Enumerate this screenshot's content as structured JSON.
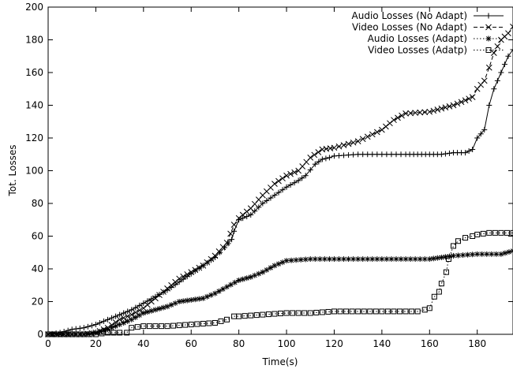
{
  "chart_data": {
    "type": "line",
    "xlabel": "Time(s)",
    "ylabel": "Tot. Losses",
    "xlim": [
      0,
      195
    ],
    "ylim": [
      0,
      200
    ],
    "xticks": [
      0,
      20,
      40,
      60,
      80,
      100,
      120,
      140,
      160,
      180
    ],
    "yticks": [
      0,
      20,
      40,
      60,
      80,
      100,
      120,
      140,
      160,
      180,
      200
    ],
    "grid": false,
    "legend_position": "top-right",
    "series": [
      {
        "name": "Audio Losses (No Adapt)",
        "line_style": "solid",
        "marker": "plus",
        "x": [
          0,
          5,
          10,
          15,
          20,
          25,
          30,
          35,
          40,
          45,
          50,
          55,
          60,
          65,
          70,
          74,
          77,
          78,
          80,
          85,
          90,
          95,
          100,
          105,
          108,
          112,
          115,
          118,
          120,
          130,
          140,
          150,
          155,
          160,
          165,
          170,
          175,
          178,
          180,
          183,
          185,
          187,
          190,
          193,
          195
        ],
        "y": [
          0,
          1,
          3,
          4,
          6,
          9,
          12,
          15,
          19,
          23,
          27,
          32,
          37,
          42,
          47,
          53,
          58,
          63,
          70,
          73,
          80,
          85,
          90,
          94,
          97,
          104,
          107,
          108,
          109,
          110,
          110,
          110,
          110,
          110,
          110,
          111,
          111,
          113,
          120,
          125,
          140,
          150,
          160,
          170,
          174
        ]
      },
      {
        "name": "Video Losses (No Adapt)",
        "line_style": "dashed",
        "marker": "x",
        "x": [
          0,
          5,
          10,
          15,
          20,
          25,
          30,
          35,
          40,
          45,
          50,
          55,
          60,
          65,
          70,
          75,
          78,
          80,
          85,
          90,
          95,
          100,
          105,
          110,
          115,
          120,
          130,
          140,
          145,
          150,
          160,
          165,
          170,
          175,
          178,
          180,
          183,
          185,
          187,
          190,
          193,
          195
        ],
        "y": [
          0,
          0,
          0,
          0,
          1,
          4,
          9,
          12,
          16,
          22,
          28,
          34,
          38,
          42,
          48,
          56,
          67,
          71,
          77,
          85,
          92,
          97,
          100,
          108,
          113,
          114,
          118,
          125,
          131,
          135,
          136,
          138,
          140,
          143,
          145,
          150,
          155,
          163,
          172,
          180,
          184,
          188
        ]
      },
      {
        "name": "Audio Losses (Adapt)",
        "line_style": "dotted",
        "marker": "asterisk",
        "x": [
          0,
          10,
          15,
          20,
          25,
          30,
          35,
          40,
          45,
          50,
          55,
          60,
          65,
          70,
          75,
          80,
          85,
          90,
          95,
          100,
          110,
          120,
          130,
          140,
          150,
          160,
          165,
          170,
          180,
          190,
          195
        ],
        "y": [
          0,
          0,
          0,
          1,
          3,
          6,
          9,
          13,
          15,
          17,
          20,
          21,
          22,
          25,
          29,
          33,
          35,
          38,
          42,
          45,
          46,
          46,
          46,
          46,
          46,
          46,
          47,
          48,
          49,
          49,
          51
        ]
      },
      {
        "name": "Video Losses (Adatp)",
        "line_style": "dotted",
        "marker": "square",
        "x": [
          0,
          20,
          25,
          30,
          33,
          35,
          40,
          50,
          60,
          70,
          75,
          78,
          80,
          90,
          100,
          110,
          120,
          130,
          140,
          150,
          155,
          158,
          160,
          162,
          164,
          165,
          167,
          168,
          170,
          172,
          175,
          178,
          180,
          185,
          190,
          195
        ],
        "y": [
          0,
          0,
          1,
          1,
          1,
          4,
          5,
          5,
          6,
          7,
          9,
          11,
          11,
          12,
          13,
          13,
          14,
          14,
          14,
          14,
          14,
          15,
          16,
          23,
          26,
          31,
          38,
          46,
          54,
          57,
          59,
          60,
          61,
          62,
          62,
          62
        ]
      }
    ]
  }
}
